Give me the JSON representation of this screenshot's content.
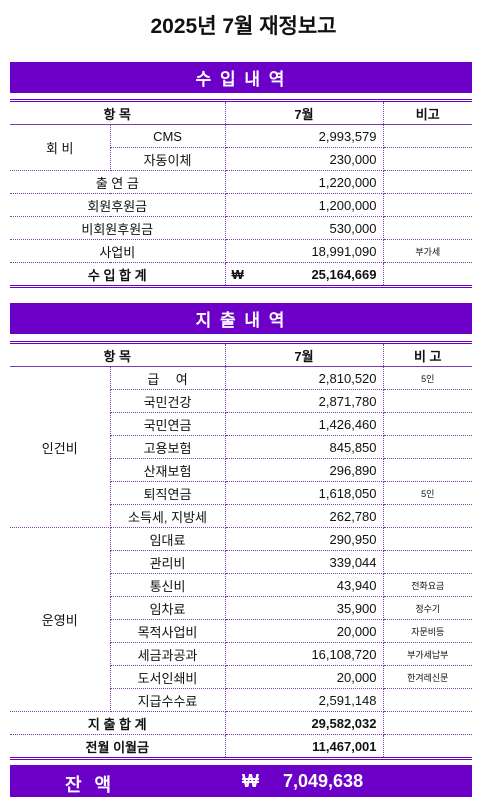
{
  "title": "2025년 7월 재정보고",
  "income": {
    "heading": "수 입 내 역",
    "columns": [
      "항 목",
      "7월",
      "비고"
    ],
    "rows": [
      {
        "group": "회 비",
        "items": [
          {
            "item": "CMS",
            "amount": "2,993,579"
          },
          {
            "item": "자동이체",
            "amount": "230,000"
          }
        ]
      },
      {
        "item": "출 연 금",
        "amount": "1,220,000"
      },
      {
        "item": "회원후원금",
        "amount": "1,200,000"
      },
      {
        "item": "비회원후원금",
        "amount": "530,000"
      },
      {
        "item": "사업비",
        "amount": "18,991,090",
        "note": "부가세"
      }
    ],
    "totals": [
      {
        "label": "수 입 합 계",
        "currency": "₩",
        "amount": "25,164,669"
      }
    ]
  },
  "expense": {
    "heading": "지 출 내 역",
    "columns": [
      "항 목",
      "7월",
      "비 고"
    ],
    "rows": [
      {
        "group": "인건비",
        "items": [
          {
            "item": "급　 여",
            "amount": "2,810,520",
            "note": "5인"
          },
          {
            "item": "국민건강",
            "amount": "2,871,780"
          },
          {
            "item": "국민연금",
            "amount": "1,426,460"
          },
          {
            "item": "고용보험",
            "amount": "845,850"
          },
          {
            "item": "산재보험",
            "amount": "296,890"
          },
          {
            "item": "퇴직연금",
            "amount": "1,618,050",
            "note": "5인"
          },
          {
            "item": "소득세, 지방세",
            "amount": "262,780"
          }
        ]
      },
      {
        "group": "운영비",
        "items": [
          {
            "item": "임대료",
            "amount": "290,950"
          },
          {
            "item": "관리비",
            "amount": "339,044"
          },
          {
            "item": "통신비",
            "amount": "43,940",
            "note": "전화요금"
          },
          {
            "item": "임차료",
            "amount": "35,900",
            "note": "정수기"
          },
          {
            "item": "목적사업비",
            "amount": "20,000",
            "note": "자문비등"
          },
          {
            "item": "세금과공과",
            "amount": "16,108,720",
            "note": "부가세납부"
          },
          {
            "item": "도서인쇄비",
            "amount": "20,000",
            "note": "한겨레신문"
          },
          {
            "item": "지급수수료",
            "amount": "2,591,148"
          }
        ]
      }
    ],
    "totals": [
      {
        "label": "지 출 합 계",
        "amount": "29,582,032"
      },
      {
        "label": "전월 이월금",
        "amount": "11,467,001"
      }
    ]
  },
  "balance": {
    "label": "잔 액",
    "currency": "₩",
    "amount": "7,049,638"
  }
}
